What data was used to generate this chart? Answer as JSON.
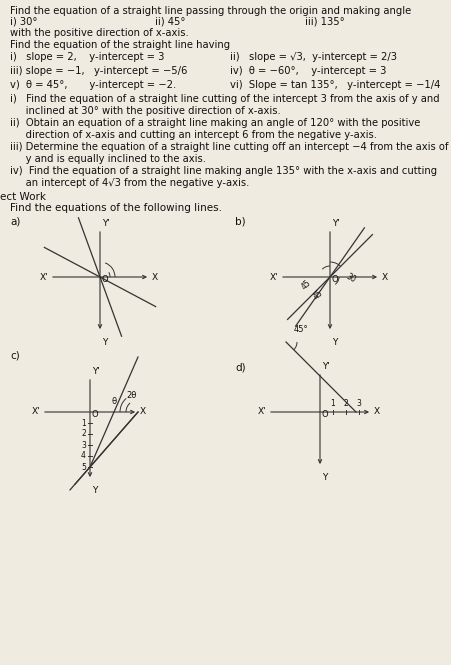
{
  "bg_color": "#f0ebe0",
  "text_color": "#1a1a1a",
  "title1": "Find the equation of a straight line passing through the origin and making angle",
  "row1_a": "i) 30°",
  "row1_b": "ii) 45°",
  "row1_c": "iii) 135°",
  "with_text": "with the positive direction of x-axis.",
  "title2": "Find the equation of the straight line having",
  "section3": [
    "i)   Find the equation of a straight line cutting of the intercept 3 from the axis of y and",
    "     inclined at 30° with the positive direction of x-axis.",
    "ii)  Obtain an equation of a straight line making an angle of 120° with the positive",
    "     direction of x-axis and cutting an intercept 6 from the negative y-axis.",
    "iii) Determine the equation of a straight line cutting off an intercept −4 from the axis of",
    "     y and is equally inclined to the axis.",
    "iv)  Find the equation of a straight line making angle 135° with the x-axis and cutting",
    "     an intercept of 4√3 from the negative y-axis."
  ],
  "ect_work": "ect Work",
  "find_eq": "Find the equations of the following lines."
}
